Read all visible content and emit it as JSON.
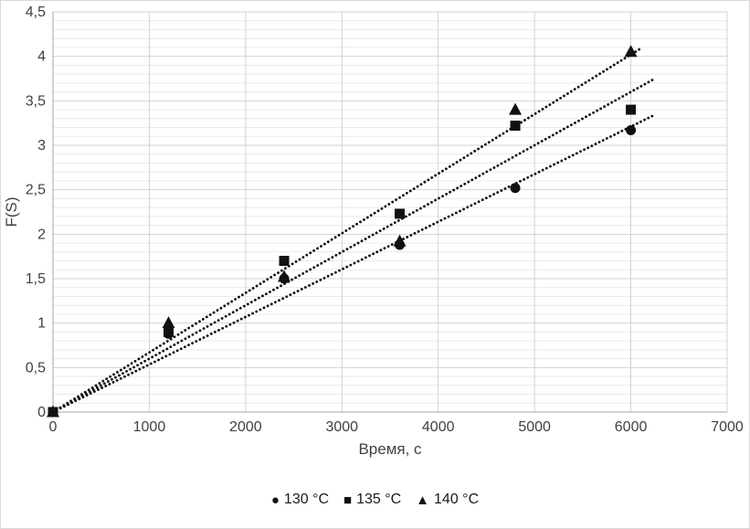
{
  "chart_data": {
    "type": "scatter",
    "title": "",
    "xlabel": "Время, с",
    "ylabel": "F(S)",
    "xlim": [
      0,
      7000
    ],
    "ylim": [
      0,
      4.5
    ],
    "x_major_step": 1000,
    "y_major_step": 0.5,
    "y_minor_step": 0.1,
    "x_tick_labels": [
      "0",
      "1000",
      "2000",
      "3000",
      "4000",
      "5000",
      "6000",
      "7000"
    ],
    "y_tick_labels": [
      "0",
      "0,5",
      "1",
      "1,5",
      "2",
      "2,5",
      "3",
      "3,5",
      "4",
      "4,5"
    ],
    "grid": "horizontal minor+major gridlines, vertical major gridlines",
    "legend_position": "bottom-center",
    "series": [
      {
        "name": "130 °C",
        "marker": "circle",
        "color": "#111111",
        "points": [
          [
            0,
            0
          ],
          [
            1200,
            0.88
          ],
          [
            2400,
            1.5
          ],
          [
            3600,
            1.88
          ],
          [
            4800,
            2.52
          ],
          [
            6000,
            3.17
          ]
        ],
        "trendline": {
          "style": "dotted",
          "slope": 0.000535,
          "x_start": 0,
          "x_end": 6250
        }
      },
      {
        "name": "135 °C",
        "marker": "square",
        "color": "#111111",
        "points": [
          [
            0,
            0
          ],
          [
            1200,
            0.9
          ],
          [
            2400,
            1.7
          ],
          [
            3600,
            2.23
          ],
          [
            4800,
            3.22
          ],
          [
            6000,
            3.4
          ]
        ],
        "trendline": {
          "style": "dotted",
          "slope": 0.0006,
          "x_start": 0,
          "x_end": 6250
        }
      },
      {
        "name": "140 °C",
        "marker": "triangle",
        "color": "#111111",
        "points": [
          [
            0,
            0
          ],
          [
            1200,
            1.0
          ],
          [
            2400,
            1.52
          ],
          [
            3600,
            1.92
          ],
          [
            4800,
            3.4
          ],
          [
            6000,
            4.05
          ]
        ],
        "trendline": {
          "style": "dotted",
          "slope": 0.00067,
          "x_start": 0,
          "x_end": 6100
        }
      }
    ],
    "colors": {
      "marker": "#111111",
      "grid_major": "#d2d2d2",
      "grid_minor": "#e9e9e9",
      "axis": "#a6a6a6",
      "tick_text": "#404040"
    }
  }
}
